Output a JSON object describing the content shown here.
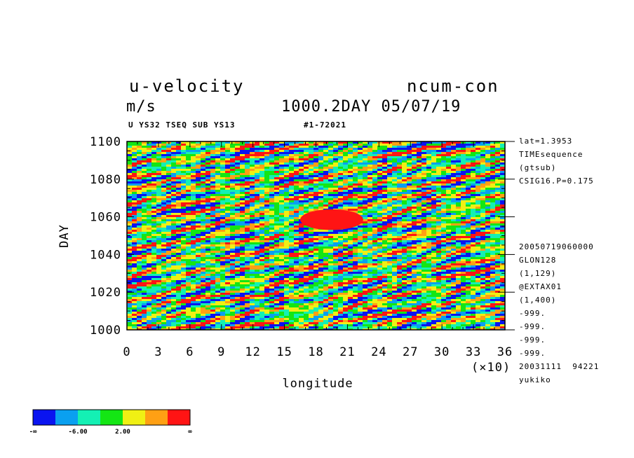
{
  "header": {
    "variable": "u-velocity",
    "run": "ncum-con",
    "units": "m/s",
    "time_date": "1000.2DAY 05/07/19",
    "subtitle": "U YS32 TSEQ SUB YS13",
    "code": "#1-72021"
  },
  "info": {
    "top": [
      "lat=1.3953",
      "TIMEsequence",
      "(gtsub)",
      "CSIG16.P=0.175"
    ],
    "bottom": [
      "20050719060000",
      "GLON128",
      "(1,129)",
      "@EXTAX01",
      "(1,400)",
      "-999.",
      "-999.",
      "-999.",
      "-999.",
      "20031111  94221",
      "yukiko"
    ]
  },
  "chart_data": {
    "type": "heatmap",
    "xlabel": "longitude",
    "ylabel": "DAY",
    "x_multiplier": "(×10)",
    "xlim": [
      0,
      36
    ],
    "ylim": [
      1000,
      1100
    ],
    "xticks": [
      "0",
      "3",
      "6",
      "9",
      "12",
      "15",
      "18",
      "21",
      "24",
      "27",
      "30",
      "33",
      "36"
    ],
    "yticks": [
      "1000",
      "1020",
      "1040",
      "1060",
      "1080",
      "1100"
    ],
    "colorbar": {
      "colors": [
        "#0a14f0",
        "#0aa0f0",
        "#14f0b4",
        "#14e614",
        "#f0f014",
        "#ffa014",
        "#ff1414"
      ],
      "labels": [
        "-∞",
        "-6.00",
        "2.00",
        "∞"
      ]
    },
    "features": [
      {
        "note": "strong positive patch",
        "x": [
          16.5,
          22.5
        ],
        "y": [
          1053,
          1064
        ]
      }
    ]
  }
}
